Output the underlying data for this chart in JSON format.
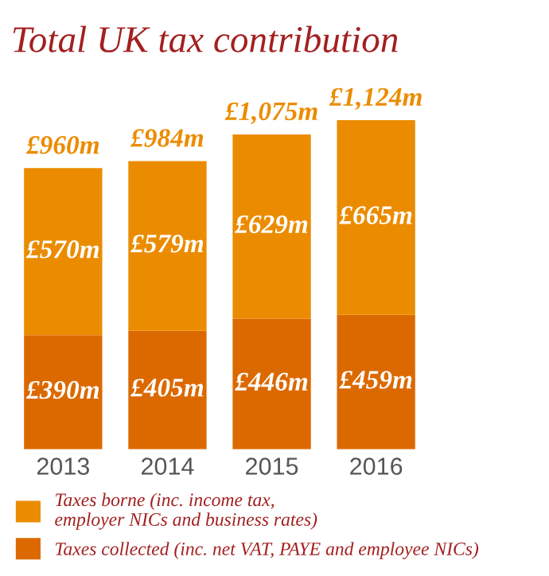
{
  "chart_data": {
    "type": "bar",
    "title": "Total UK tax contribution",
    "stacked": true,
    "legend": "bottom",
    "grid": false,
    "categories": [
      "2013",
      "2014",
      "2015",
      "2016"
    ],
    "series": [
      {
        "name": "Taxes collected (inc. net VAT, PAYE and employee NICs)",
        "color": "#dc6900",
        "values": [
          390,
          405,
          446,
          459
        ],
        "value_labels": [
          "£390m",
          "£405m",
          "£446m",
          "£459m"
        ]
      },
      {
        "name": "Taxes borne (inc. income tax,\nemployer NICs and business rates)",
        "color": "#eb8c00",
        "values": [
          570,
          579,
          629,
          665
        ],
        "value_labels": [
          "£570m",
          "£579m",
          "£629m",
          "£665m"
        ]
      }
    ],
    "totals": [
      "£960m",
      "£984m",
      "£1,075m",
      "£1,124m"
    ]
  }
}
